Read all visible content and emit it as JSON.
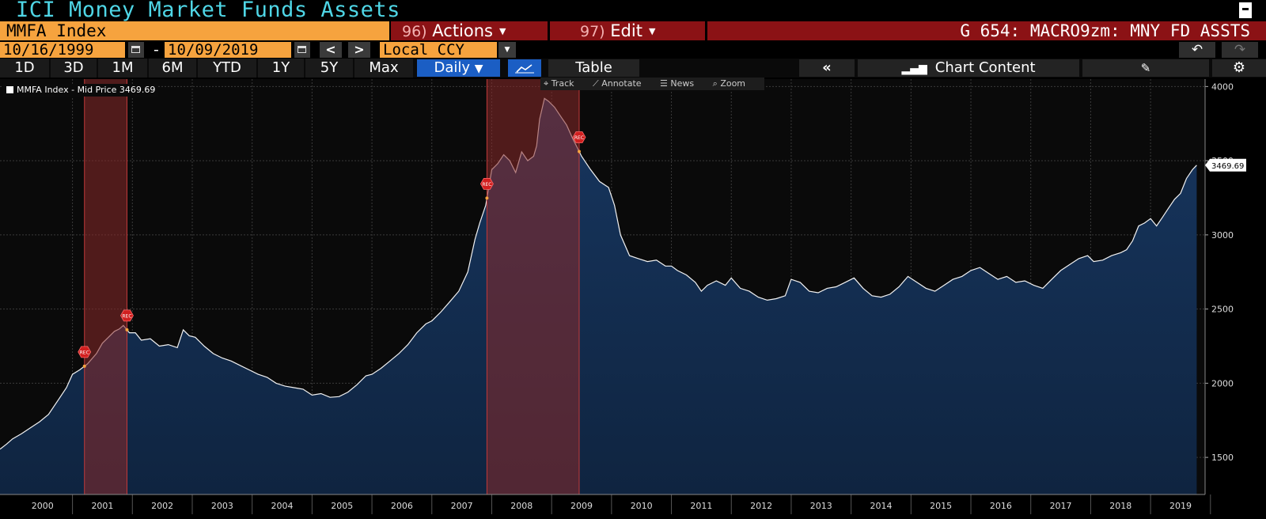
{
  "header": {
    "title": "ICI Money Market Funds Assets",
    "ticker": "MMFA Index",
    "actions_num": "96)",
    "actions_label": "Actions",
    "edit_num": "97)",
    "edit_label": "Edit",
    "page_code": "G 654: MACRO9zm: MNY FD ASSTS"
  },
  "date_range": {
    "start": "10/16/1999",
    "separator": "-",
    "end": "10/09/2019",
    "prev": "<",
    "next": ">",
    "currency": "Local CCY"
  },
  "toolbar": {
    "ranges": [
      "1D",
      "3D",
      "1M",
      "6M",
      "YTD",
      "1Y",
      "5Y",
      "Max"
    ],
    "frequency": "Daily",
    "table_label": "Table",
    "collapse_label": "«",
    "chart_content_label": "Chart Content",
    "undo": "↶",
    "redo": "↷"
  },
  "chart_tools": {
    "track": "Track",
    "annotate": "Annotate",
    "news": "News",
    "zoom": "Zoom"
  },
  "legend": {
    "label": "MMFA Index - Mid Price 3469.69"
  },
  "colors": {
    "accent_orange": "#f6a33e",
    "title_cyan": "#4fd6e6",
    "button_red": "#8b1215",
    "active_blue": "#1b5ec4",
    "area_fill": "#0f2440",
    "recession_band": "#8b2a2a"
  },
  "chart_data": {
    "type": "area",
    "title": "ICI Money Market Funds Assets",
    "series": [
      {
        "name": "MMFA Index - Mid Price",
        "points": [
          [
            1999.79,
            1555
          ],
          [
            1999.9,
            1590
          ],
          [
            2000.0,
            1625
          ],
          [
            2000.15,
            1660
          ],
          [
            2000.3,
            1700
          ],
          [
            2000.45,
            1740
          ],
          [
            2000.6,
            1790
          ],
          [
            2000.75,
            1880
          ],
          [
            2000.9,
            1970
          ],
          [
            2001.0,
            2060
          ],
          [
            2001.12,
            2090
          ],
          [
            2001.25,
            2130
          ],
          [
            2001.4,
            2200
          ],
          [
            2001.5,
            2270
          ],
          [
            2001.6,
            2310
          ],
          [
            2001.7,
            2350
          ],
          [
            2001.78,
            2365
          ],
          [
            2001.85,
            2390
          ],
          [
            2001.95,
            2340
          ],
          [
            2002.05,
            2340
          ],
          [
            2002.15,
            2290
          ],
          [
            2002.3,
            2300
          ],
          [
            2002.45,
            2250
          ],
          [
            2002.6,
            2260
          ],
          [
            2002.75,
            2240
          ],
          [
            2002.85,
            2360
          ],
          [
            2002.95,
            2320
          ],
          [
            2003.05,
            2310
          ],
          [
            2003.2,
            2250
          ],
          [
            2003.35,
            2200
          ],
          [
            2003.5,
            2170
          ],
          [
            2003.65,
            2150
          ],
          [
            2003.8,
            2120
          ],
          [
            2003.95,
            2090
          ],
          [
            2004.1,
            2060
          ],
          [
            2004.25,
            2040
          ],
          [
            2004.4,
            2000
          ],
          [
            2004.55,
            1980
          ],
          [
            2004.7,
            1970
          ],
          [
            2004.85,
            1960
          ],
          [
            2005.0,
            1920
          ],
          [
            2005.15,
            1930
          ],
          [
            2005.3,
            1905
          ],
          [
            2005.45,
            1910
          ],
          [
            2005.6,
            1940
          ],
          [
            2005.75,
            1990
          ],
          [
            2005.9,
            2050
          ],
          [
            2006.0,
            2060
          ],
          [
            2006.15,
            2100
          ],
          [
            2006.3,
            2150
          ],
          [
            2006.45,
            2200
          ],
          [
            2006.6,
            2260
          ],
          [
            2006.75,
            2340
          ],
          [
            2006.9,
            2400
          ],
          [
            2007.0,
            2420
          ],
          [
            2007.15,
            2480
          ],
          [
            2007.3,
            2550
          ],
          [
            2007.45,
            2620
          ],
          [
            2007.6,
            2750
          ],
          [
            2007.72,
            2970
          ],
          [
            2007.8,
            3080
          ],
          [
            2007.9,
            3200
          ],
          [
            2008.0,
            3440
          ],
          [
            2008.1,
            3480
          ],
          [
            2008.2,
            3540
          ],
          [
            2008.3,
            3500
          ],
          [
            2008.4,
            3420
          ],
          [
            2008.5,
            3560
          ],
          [
            2008.6,
            3500
          ],
          [
            2008.7,
            3530
          ],
          [
            2008.75,
            3600
          ],
          [
            2008.8,
            3780
          ],
          [
            2008.88,
            3920
          ],
          [
            2008.95,
            3900
          ],
          [
            2009.05,
            3860
          ],
          [
            2009.15,
            3800
          ],
          [
            2009.25,
            3740
          ],
          [
            2009.35,
            3650
          ],
          [
            2009.5,
            3530
          ],
          [
            2009.65,
            3440
          ],
          [
            2009.8,
            3360
          ],
          [
            2009.95,
            3320
          ],
          [
            2010.05,
            3200
          ],
          [
            2010.15,
            3000
          ],
          [
            2010.3,
            2860
          ],
          [
            2010.45,
            2840
          ],
          [
            2010.6,
            2820
          ],
          [
            2010.75,
            2830
          ],
          [
            2010.9,
            2790
          ],
          [
            2011.0,
            2790
          ],
          [
            2011.1,
            2760
          ],
          [
            2011.25,
            2730
          ],
          [
            2011.4,
            2680
          ],
          [
            2011.5,
            2620
          ],
          [
            2011.6,
            2660
          ],
          [
            2011.75,
            2690
          ],
          [
            2011.9,
            2660
          ],
          [
            2012.0,
            2710
          ],
          [
            2012.15,
            2640
          ],
          [
            2012.3,
            2620
          ],
          [
            2012.45,
            2580
          ],
          [
            2012.6,
            2560
          ],
          [
            2012.75,
            2570
          ],
          [
            2012.9,
            2590
          ],
          [
            2013.0,
            2700
          ],
          [
            2013.15,
            2680
          ],
          [
            2013.3,
            2620
          ],
          [
            2013.45,
            2610
          ],
          [
            2013.6,
            2640
          ],
          [
            2013.75,
            2650
          ],
          [
            2013.9,
            2680
          ],
          [
            2014.05,
            2710
          ],
          [
            2014.2,
            2640
          ],
          [
            2014.35,
            2590
          ],
          [
            2014.5,
            2580
          ],
          [
            2014.65,
            2600
          ],
          [
            2014.8,
            2650
          ],
          [
            2014.95,
            2720
          ],
          [
            2015.1,
            2680
          ],
          [
            2015.25,
            2640
          ],
          [
            2015.4,
            2620
          ],
          [
            2015.55,
            2660
          ],
          [
            2015.7,
            2700
          ],
          [
            2015.85,
            2720
          ],
          [
            2016.0,
            2760
          ],
          [
            2016.15,
            2780
          ],
          [
            2016.3,
            2740
          ],
          [
            2016.45,
            2700
          ],
          [
            2016.6,
            2720
          ],
          [
            2016.75,
            2680
          ],
          [
            2016.9,
            2690
          ],
          [
            2017.05,
            2660
          ],
          [
            2017.2,
            2640
          ],
          [
            2017.35,
            2700
          ],
          [
            2017.5,
            2760
          ],
          [
            2017.65,
            2800
          ],
          [
            2017.8,
            2840
          ],
          [
            2017.95,
            2860
          ],
          [
            2018.05,
            2820
          ],
          [
            2018.2,
            2830
          ],
          [
            2018.35,
            2860
          ],
          [
            2018.5,
            2880
          ],
          [
            2018.6,
            2900
          ],
          [
            2018.7,
            2960
          ],
          [
            2018.8,
            3060
          ],
          [
            2018.9,
            3080
          ],
          [
            2019.0,
            3110
          ],
          [
            2019.1,
            3060
          ],
          [
            2019.2,
            3120
          ],
          [
            2019.3,
            3180
          ],
          [
            2019.4,
            3240
          ],
          [
            2019.5,
            3280
          ],
          [
            2019.6,
            3380
          ],
          [
            2019.7,
            3440
          ],
          [
            2019.77,
            3469.69
          ]
        ]
      }
    ],
    "last_value_label": "3469.69",
    "recessions": [
      [
        2001.2,
        2001.91
      ],
      [
        2007.92,
        2009.46
      ]
    ],
    "recession_marker_text": "REC",
    "x_ticks": [
      "2000",
      "2001",
      "2002",
      "2003",
      "2004",
      "2005",
      "2006",
      "2007",
      "2008",
      "2009",
      "2010",
      "2011",
      "2012",
      "2013",
      "2014",
      "2015",
      "2016",
      "2017",
      "2018",
      "2019"
    ],
    "y_ticks": [
      "1500",
      "2000",
      "2500",
      "3000",
      "3500",
      "4000"
    ],
    "xlim": [
      1999.79,
      2019.91
    ],
    "ylim": [
      1250,
      4050
    ],
    "grid": true,
    "legend_position": "top-left"
  }
}
